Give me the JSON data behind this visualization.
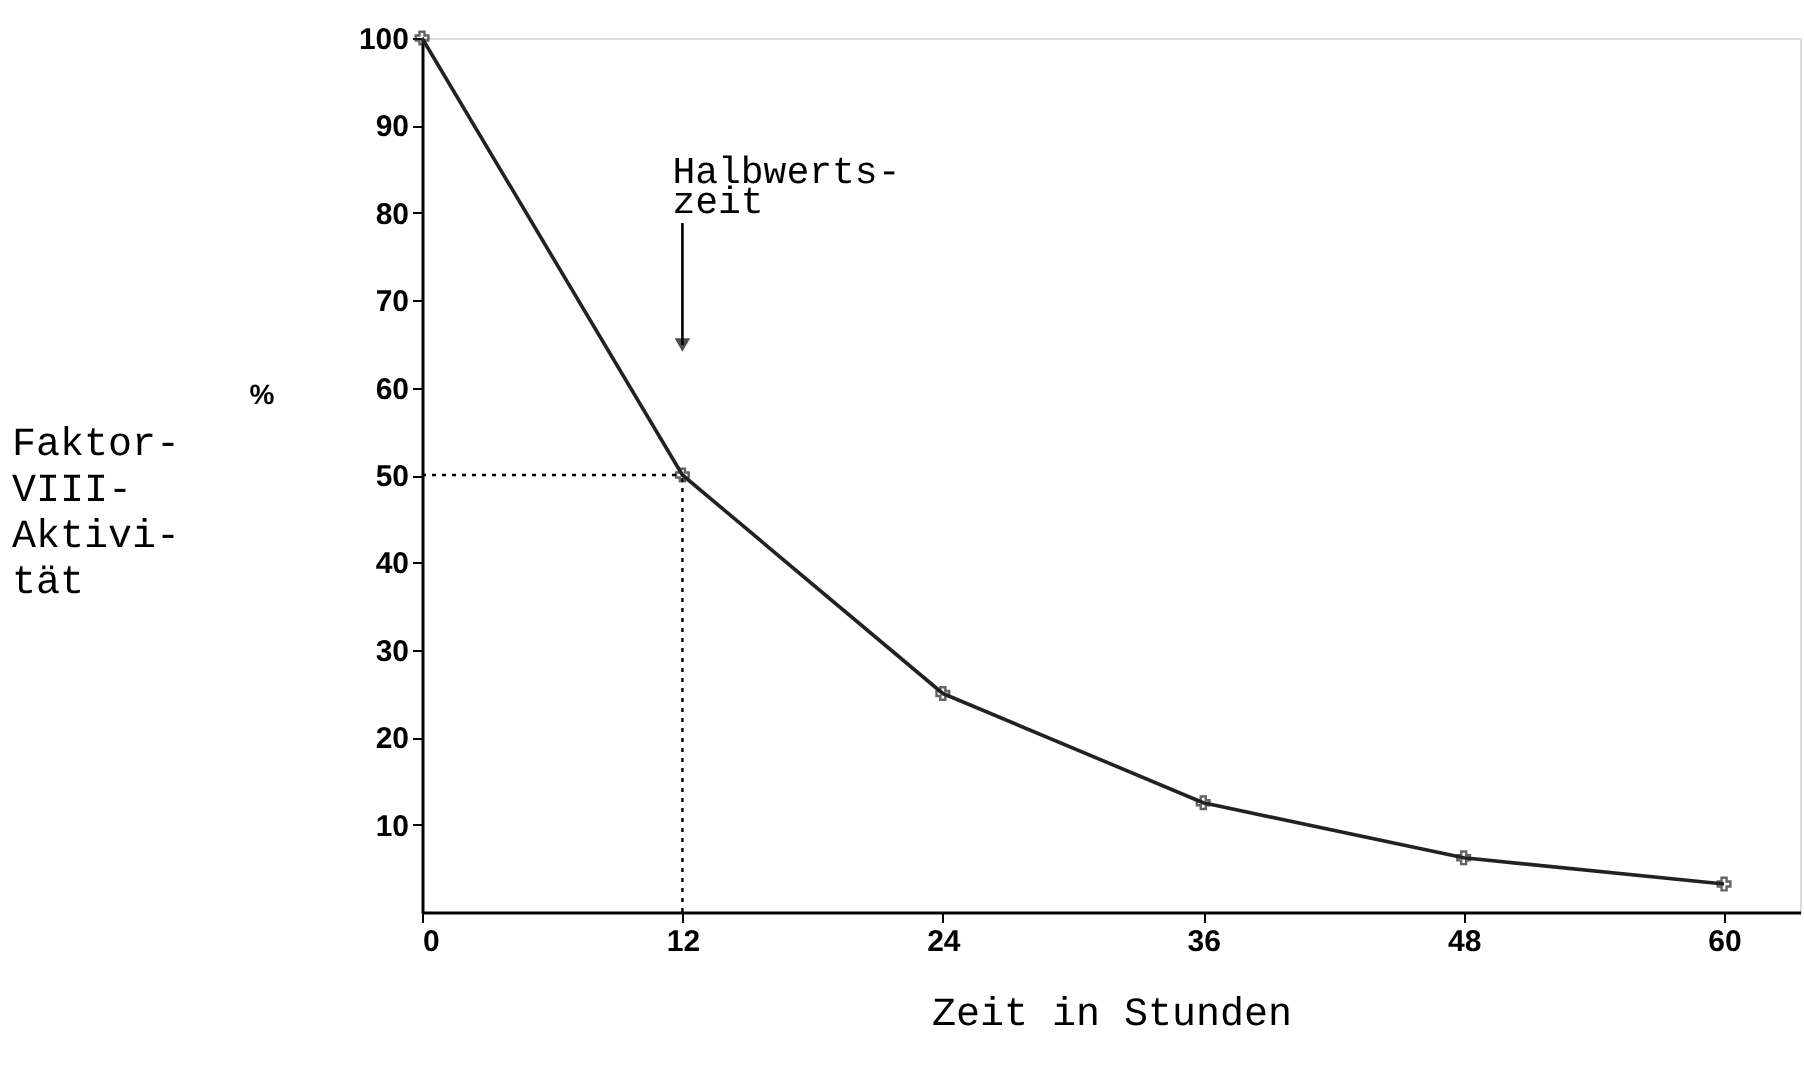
{
  "chart_data": {
    "type": "line",
    "x": [
      0,
      12,
      24,
      36,
      48,
      60
    ],
    "values": [
      100,
      50,
      25,
      12.5,
      6.2,
      3.2
    ],
    "color": "#222222",
    "marker": "cross",
    "line_style": "solid",
    "xlabel": "Zeit in Stunden",
    "ylabel": "Faktor-\nVIII-\nAktivi-\ntät",
    "xlim": [
      0,
      63.5
    ],
    "xticks": [
      0,
      12,
      24,
      36,
      48,
      60
    ],
    "ylim": [
      0,
      100
    ],
    "yticks": [
      10,
      20,
      30,
      40,
      50,
      60,
      70,
      80,
      90,
      100
    ],
    "grid": false,
    "ref_lines": [
      {
        "axis": "y",
        "value": 50,
        "line_style": "dotted"
      },
      {
        "axis": "x",
        "value": 12,
        "line_style": "dotted"
      }
    ],
    "annotations": [
      "Halbwerts-\nzeit",
      "%"
    ]
  }
}
